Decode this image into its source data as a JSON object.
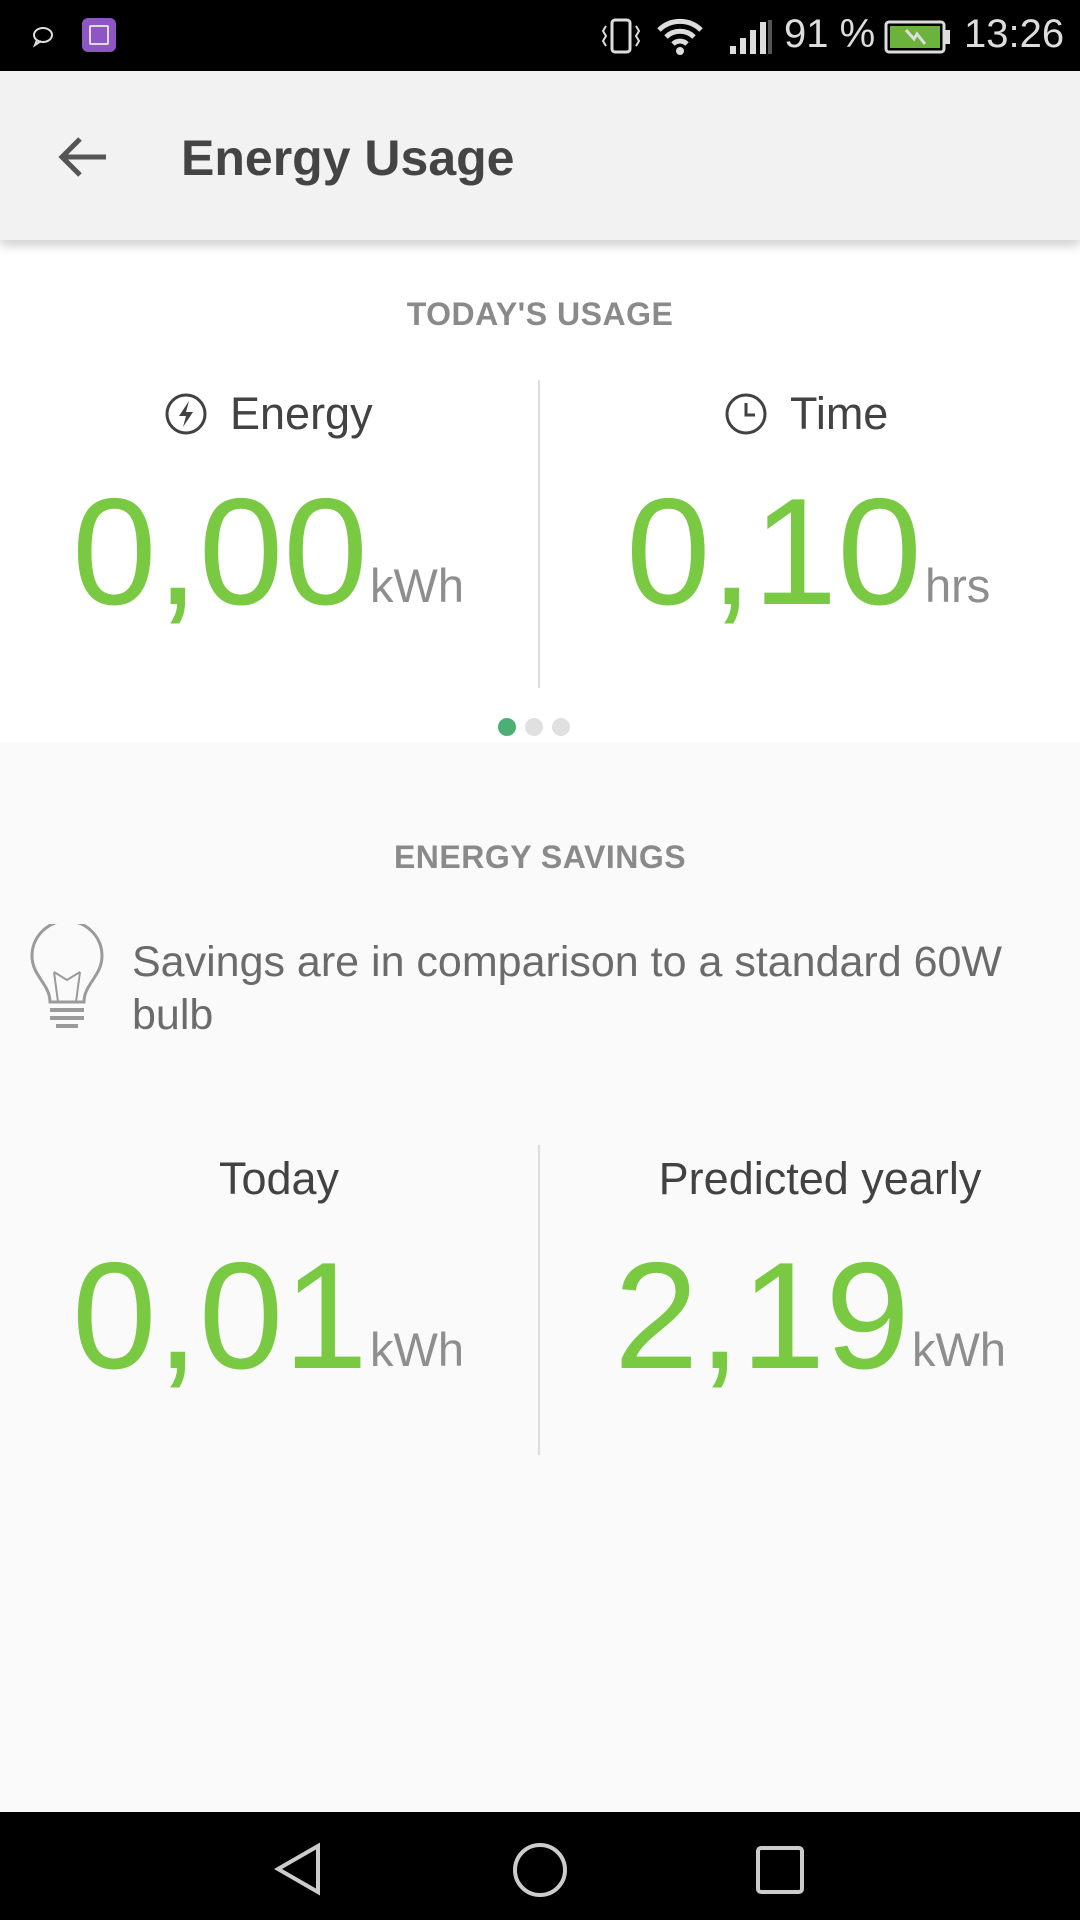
{
  "status_bar": {
    "battery_percent": "91 %",
    "time": "13:26",
    "battery_level": 0.91,
    "icons": [
      "notification-bubble-icon",
      "gallery-app-icon",
      "vibrate-icon",
      "wifi-icon",
      "signal-icon",
      "battery-charging-icon"
    ]
  },
  "header": {
    "title": "Energy Usage",
    "back_icon": "arrow-left-icon"
  },
  "todays_usage": {
    "section_title": "TODAY'S USAGE",
    "energy": {
      "label": "Energy",
      "icon": "bolt-circle-icon",
      "value": "0,00",
      "unit": "kWh"
    },
    "time": {
      "label": "Time",
      "icon": "clock-icon",
      "value": "0,10",
      "unit": "hrs"
    },
    "page_indicator": {
      "pages": 3,
      "active": 1
    }
  },
  "energy_savings": {
    "section_title": "ENERGY SAVINGS",
    "note_icon": "lightbulb-icon",
    "note": "Savings are in comparison to a standard 60W bulb",
    "today": {
      "label": "Today",
      "value": "0,01",
      "unit": "kWh"
    },
    "yearly": {
      "label": "Predicted yearly",
      "value": "2,19",
      "unit": "kWh"
    }
  },
  "colors": {
    "accent_green": "#7ac943",
    "active_dot": "#4caf73"
  }
}
